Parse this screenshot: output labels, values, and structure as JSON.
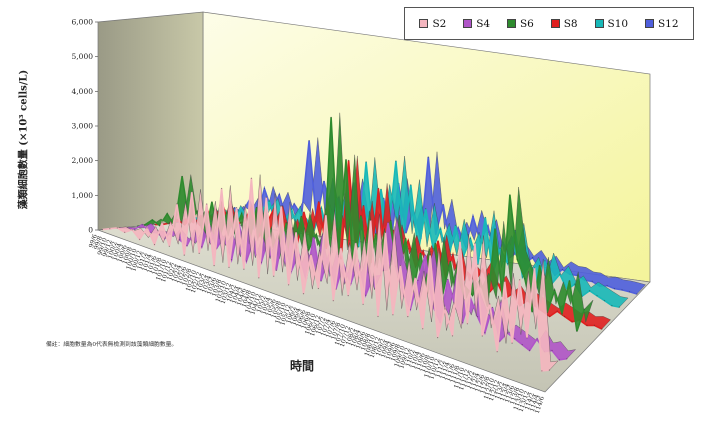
{
  "chart_data": {
    "type": "line",
    "subtype": "3d-ribbon",
    "title": "",
    "xlabel": "時間",
    "ylabel": "藻類細胞數量 (×10³ cells/L)",
    "ylim": [
      0,
      6000
    ],
    "yticks": [
      "0",
      "1,000",
      "2,000",
      "3,000",
      "4,000",
      "5,000",
      "6,000"
    ],
    "grid": false,
    "legend_position": "top-right",
    "note": "備註：細胞數量為0代表無檢測到該藻類細胞數量。",
    "categories": [
      "99/6",
      "99/9",
      "99/12",
      "100/3",
      "100/6",
      "100/9",
      "100/12",
      "101/3",
      "101/6",
      "101/9",
      "101/12",
      "102/3",
      "102/6",
      "102/9",
      "102/12",
      "103/3",
      "103/6",
      "103/9",
      "103/12",
      "104/3",
      "104/6",
      "104/9",
      "104/12",
      "105/3",
      "105/6",
      "105/9",
      "105/12",
      "106/3",
      "106/6",
      "106/9",
      "106/12",
      "107/3",
      "107/6",
      "107/9",
      "107/12",
      "108/3",
      "108/6",
      "108/9",
      "108/12",
      "109/3",
      "109/6",
      "109/9",
      "109/12",
      "110/3",
      "110/6",
      "110/9",
      "110/12",
      "111/3",
      "111/6",
      "111/9",
      "111/12",
      "112/3",
      "112/6",
      "112/9",
      "112/12",
      "113/3",
      "113/6",
      "113/9",
      "113/12",
      "114/3",
      "114/6"
    ],
    "xtick_labels": [
      "99/6",
      "99/8",
      "99/10",
      "99/12",
      "100/2",
      "100/4",
      "100/6",
      "100/8",
      "100/10",
      "100/12",
      "101/2",
      "101/4",
      "101/6",
      "101/8",
      "101/10",
      "101/12",
      "102/2",
      "102/4",
      "102/6",
      "102/8",
      "102/10",
      "102/12",
      "103/2",
      "103/4",
      "103/6",
      "103/8",
      "103/10",
      "103/12",
      "104/2",
      "104/4",
      "104/6",
      "104/8",
      "104/10",
      "104/12",
      "105/2",
      "105/4",
      "105/6",
      "105/8",
      "105/10",
      "105/12",
      "106/2",
      "106/4",
      "106/6",
      "106/8",
      "106/10",
      "106/12",
      "107/2",
      "107/4",
      "107/6",
      "107/8",
      "107/10",
      "107/12",
      "108/2",
      "108/4",
      "108/6",
      "108/8",
      "108/10",
      "108/12",
      "109/2",
      "109/4",
      "109/6",
      "109/8",
      "109/10",
      "109/12",
      "110/2",
      "110/4",
      "110/6",
      "110/8",
      "110/10",
      "110/12",
      "111/2",
      "111/4",
      "111/6",
      "111/8",
      "111/10",
      "111/12",
      "112/2",
      "112/4",
      "112/6",
      "112/8",
      "112/10",
      "112/12",
      "113/2",
      "113/4",
      "113/6",
      "113/8",
      "113/10",
      "113/12",
      "114/2",
      "114/4",
      "114/6"
    ],
    "series": [
      {
        "name": "S2",
        "color": "#f4b6bf",
        "values": [
          0,
          100,
          200,
          150,
          300,
          100,
          500,
          100,
          800,
          200,
          1500,
          100,
          2000,
          300,
          1800,
          100,
          2400,
          200,
          2000,
          300,
          3000,
          200,
          2600,
          400,
          2500,
          300,
          1900,
          200,
          1400,
          500,
          2700,
          300,
          1900,
          600,
          2200,
          500,
          3000,
          300,
          2800,
          500,
          2000,
          600,
          1800,
          400,
          2600,
          300,
          1200,
          500,
          3300,
          1000,
          3400,
          800,
          1800,
          500,
          2600,
          900,
          2800,
          1200,
          3300,
          400,
          500
        ]
      },
      {
        "name": "S4",
        "color": "#b055c8",
        "values": [
          0,
          50,
          100,
          300,
          150,
          200,
          100,
          400,
          200,
          100,
          600,
          200,
          900,
          300,
          700,
          100,
          1200,
          200,
          900,
          300,
          1100,
          200,
          1400,
          300,
          900,
          200,
          1500,
          300,
          1100,
          200,
          1000,
          500,
          1200,
          300,
          900,
          1000,
          2600,
          1400,
          700,
          300,
          1200,
          2000,
          600,
          200,
          1500,
          800,
          400,
          1200,
          700,
          300,
          1100,
          200,
          500,
          400,
          300,
          200,
          600,
          300,
          400,
          200,
          300
        ]
      },
      {
        "name": "S6",
        "color": "#2e8b2e",
        "values": [
          0,
          100,
          300,
          200,
          600,
          300,
          1800,
          500,
          900,
          200,
          1300,
          300,
          1100,
          600,
          1200,
          400,
          1500,
          300,
          1000,
          200,
          1300,
          500,
          1600,
          700,
          1200,
          600,
          4700,
          800,
          3600,
          400,
          2100,
          500,
          1700,
          700,
          2200,
          600,
          1800,
          300,
          1500,
          400,
          1900,
          500,
          1500,
          300,
          900,
          700,
          1200,
          500,
          2800,
          900,
          3900,
          2100,
          1600,
          700,
          2100,
          800,
          1500,
          900,
          1900,
          500,
          1200
        ]
      },
      {
        "name": "S8",
        "color": "#e02020",
        "values": [
          0,
          50,
          150,
          300,
          200,
          500,
          300,
          800,
          400,
          1100,
          500,
          600,
          700,
          1200,
          400,
          800,
          1300,
          500,
          1000,
          300,
          1400,
          600,
          1800,
          500,
          1400,
          300,
          3200,
          600,
          2000,
          400,
          2600,
          500,
          1500,
          700,
          1300,
          600,
          1100,
          400,
          1500,
          500,
          1200,
          300,
          800,
          600,
          1000,
          400,
          700,
          300,
          500,
          200,
          400,
          300,
          200,
          100,
          300,
          200,
          100,
          200,
          100,
          150,
          100
        ]
      },
      {
        "name": "S10",
        "color": "#18b8b8",
        "values": [
          0,
          80,
          200,
          300,
          150,
          400,
          600,
          300,
          800,
          500,
          600,
          300,
          900,
          1200,
          500,
          700,
          1100,
          400,
          900,
          600,
          1300,
          500,
          1700,
          900,
          1200,
          400,
          2900,
          800,
          2200,
          1000,
          3100,
          900,
          2500,
          600,
          1900,
          800,
          1400,
          500,
          1600,
          700,
          1300,
          600,
          2000,
          400,
          1200,
          800,
          1800,
          500,
          900,
          300,
          1100,
          500,
          800,
          400,
          600,
          300,
          500,
          400,
          300,
          200,
          200
        ]
      },
      {
        "name": "S12",
        "color": "#4f5fdc",
        "values": [
          0,
          60,
          120,
          250,
          400,
          300,
          600,
          500,
          900,
          400,
          1300,
          700,
          1200,
          500,
          1000,
          700,
          2900,
          600,
          1800,
          900,
          1400,
          500,
          1900,
          600,
          1100,
          500,
          1600,
          400,
          2100,
          700,
          1400,
          600,
          3000,
          800,
          1700,
          500,
          1100,
          600,
          1500,
          800,
          1300,
          400,
          900,
          500,
          700,
          400,
          600,
          300,
          500,
          200,
          400,
          300,
          300,
          200,
          200,
          100,
          150,
          100,
          100,
          80,
          50
        ]
      }
    ]
  }
}
